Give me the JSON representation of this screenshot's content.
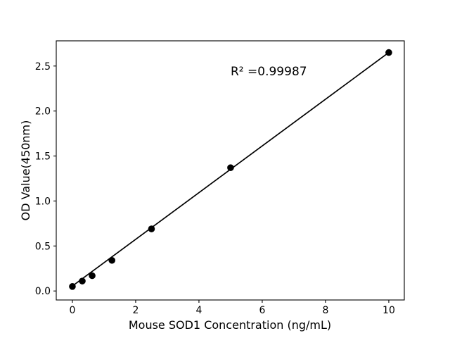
{
  "chart_data": {
    "type": "scatter",
    "title": "",
    "xlabel": "Mouse SOD1 Concentration (ng/mL)",
    "ylabel": "OD Value(450nm)",
    "annotation": {
      "text": "R² =0.99987"
    },
    "series": [
      {
        "name": "standards",
        "x": [
          0,
          0.3125,
          0.625,
          1.25,
          2.5,
          5,
          10
        ],
        "y": [
          0.05,
          0.11,
          0.17,
          0.34,
          0.69,
          1.37,
          2.65
        ]
      }
    ],
    "fit_line": {
      "x": [
        0,
        10
      ],
      "y": [
        0.055,
        2.65
      ],
      "r_squared": 0.99987
    },
    "xlim": [
      -0.51,
      10.49
    ],
    "ylim": [
      -0.1,
      2.78
    ],
    "xticks": {
      "values": [
        0,
        2,
        4,
        6,
        8,
        10
      ],
      "labels": [
        "0",
        "2",
        "4",
        "6",
        "8",
        "10"
      ]
    },
    "yticks": {
      "values": [
        0,
        0.5,
        1,
        1.5,
        2,
        2.5
      ],
      "labels": [
        "0.0",
        "0.5",
        "1.0",
        "1.5",
        "2.0",
        "2.5"
      ]
    },
    "legend": "none",
    "grid": false,
    "colors": {
      "marker": "#000000",
      "line": "#000000",
      "axes": "#000000",
      "tick_text": "#000000",
      "background": "#ffffff"
    }
  }
}
